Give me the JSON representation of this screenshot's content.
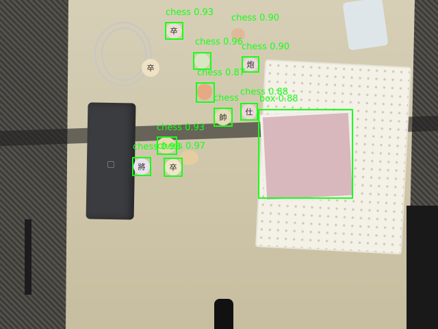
{
  "image": {
    "description_free": true
  },
  "detections": [
    {
      "label": "chess",
      "score": "0.93"
    },
    {
      "label": "chess",
      "score": "0.90"
    },
    {
      "label": "chess",
      "score": "0.96"
    },
    {
      "label": "chess",
      "score": "0.90"
    },
    {
      "label": "chess",
      "score": "0.87"
    },
    {
      "label": "chess",
      "score": "0.88"
    },
    {
      "label": "box",
      "score": "0.88"
    },
    {
      "label": "chess",
      "score": "0.93"
    },
    {
      "label": "chess",
      "score": "0.98"
    },
    {
      "label": "chess",
      "score": "0.97"
    }
  ],
  "colors": {
    "box_stroke": "#16ff16",
    "label_text": "#16ff16"
  },
  "pieces": [
    {
      "glyph": "卒"
    },
    {
      "glyph": "炮"
    },
    {
      "glyph": "帥"
    },
    {
      "glyph": "仕"
    },
    {
      "glyph": "將"
    },
    {
      "glyph": "卒"
    },
    {
      "glyph": "兵"
    }
  ]
}
